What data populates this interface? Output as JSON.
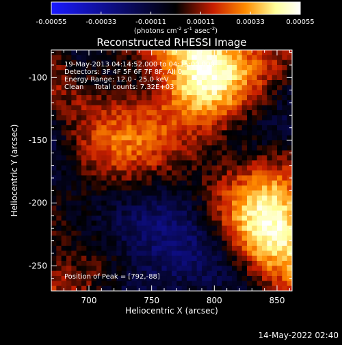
{
  "colorbar": {
    "ticks": [
      "-0.00055",
      "-0.00033",
      "-0.00011",
      "0.00011",
      "0.00033",
      "0.00055"
    ],
    "units_label_pre": "(photons cm",
    "units_sup1": "-2",
    "units_mid": " s",
    "units_sup2": "-1",
    "units_post": " asec",
    "units_sup3": "-2",
    "units_close": ")",
    "colors": [
      "#1a1aff",
      "#000000",
      "#c81e00",
      "#ff8c00",
      "#ffff9a",
      "#ffffff"
    ]
  },
  "chart_data": {
    "type": "heatmap",
    "title": "Reconstructed RHESSI Image",
    "xlabel": "Heliocentric X (arcsec)",
    "ylabel": "Heliocentric Y (arcsec)",
    "xlim": [
      670,
      862
    ],
    "ylim": [
      -270,
      -78
    ],
    "xticks": [
      700,
      750,
      800,
      850
    ],
    "yticks": [
      -250,
      -200,
      -150,
      -100
    ],
    "xtick_labels": [
      "700",
      "750",
      "800",
      "850"
    ],
    "ytick_labels": [
      "-250",
      "-200",
      "-150",
      "-100"
    ],
    "value_range": [
      -0.00055,
      0.00055
    ],
    "info_lines": [
      "19-May-2013 04:14:52.000 to 04:15:00.000",
      "Detectors: 3F 4F 5F 6F 7F 8F, All 0",
      "Energy Range: 12.0 - 25.0 keV",
      "Clean     Total counts: 7.32E+03"
    ],
    "peak_label": "Position of Peak = [792,-88]",
    "peak": [
      792,
      -88
    ]
  },
  "footer": {
    "timestamp": "14-May-2022 02:40"
  }
}
